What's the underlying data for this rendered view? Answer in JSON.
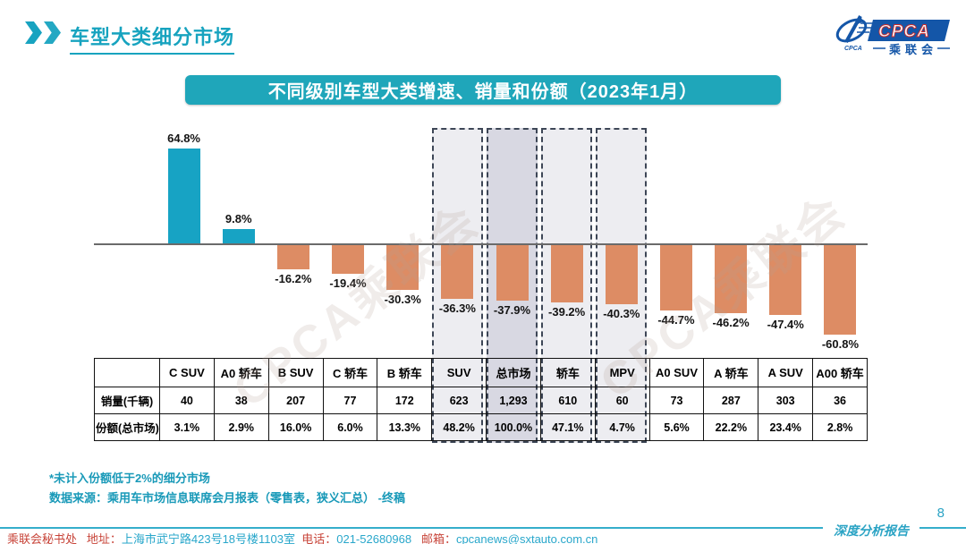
{
  "header": {
    "title": "车型大类细分市场",
    "logo": {
      "cpca": "CPCA",
      "sub": "乘联会",
      "emblem_caption": "CPCA"
    }
  },
  "banner": {
    "title": "不同级别车型大类增速、销量和份额（2023年1月）"
  },
  "chart_data": {
    "type": "bar",
    "title": "不同级别车型大类增速、销量和份额（2023年1月）",
    "categories": [
      "C SUV",
      "A0 轿车",
      "B SUV",
      "C 轿车",
      "B 轿车",
      "SUV",
      "总市场",
      "轿车",
      "MPV",
      "A0 SUV",
      "A 轿车",
      "A SUV",
      "A00 轿车"
    ],
    "series": [
      {
        "name": "增速",
        "unit": "%",
        "values": [
          64.8,
          9.8,
          -16.2,
          -19.4,
          -30.3,
          -36.3,
          -37.9,
          -39.2,
          -40.3,
          -44.7,
          -46.2,
          -47.4,
          -60.8
        ]
      },
      {
        "name": "销量(千辆)",
        "values": [
          40,
          38,
          207,
          77,
          172,
          623,
          1293,
          610,
          60,
          73,
          287,
          303,
          36
        ]
      },
      {
        "name": "份额(总市场)",
        "unit": "%",
        "values": [
          3.1,
          2.9,
          16.0,
          6.0,
          13.3,
          48.2,
          100.0,
          47.1,
          4.7,
          5.6,
          22.2,
          23.4,
          2.8
        ]
      }
    ],
    "growth_display": [
      "64.8%",
      "9.8%",
      "-16.2%",
      "-19.4%",
      "-30.3%",
      "-36.3%",
      "-37.9%",
      "-39.2%",
      "-40.3%",
      "-44.7%",
      "-46.2%",
      "-47.4%",
      "-60.8%"
    ],
    "highlighted_categories": [
      "SUV",
      "总市场",
      "轿车",
      "MPV"
    ],
    "ylim": [
      -70,
      75
    ],
    "grid": false,
    "legend": "none"
  },
  "table": {
    "row_labels": [
      "销量(千辆)",
      "份额(总市场)"
    ],
    "sales_display": [
      "40",
      "38",
      "207",
      "77",
      "172",
      "623",
      "1,293",
      "610",
      "60",
      "73",
      "287",
      "303",
      "36"
    ],
    "share_display": [
      "3.1%",
      "2.9%",
      "16.0%",
      "6.0%",
      "13.3%",
      "48.2%",
      "100.0%",
      "47.1%",
      "4.7%",
      "5.6%",
      "22.2%",
      "23.4%",
      "2.8%"
    ]
  },
  "notes": {
    "note1": "*未计入份额低于2%的细分市场",
    "note2": "数据来源：乘用车市场信息联席会月报表（零售表，狭义汇总） -终稿"
  },
  "footer": {
    "org": "乘联会秘书处",
    "address_label": "地址：",
    "address": "上海市武宁路423号18号楼1103室",
    "phone_label": "电话：",
    "phone": "021-52680968",
    "email_label": "邮箱：",
    "email": "cpcanews@sxtauto.com.cn",
    "report_label": "深度分析报告",
    "page_number": "8"
  },
  "watermark": {
    "text": "CPCA乘联会"
  },
  "colors": {
    "accent_teal": "#1FA6BA",
    "bar_positive": "#17A3C4",
    "bar_negative": "#DD8C64",
    "highlight_fill": "#EDEDF1",
    "highlight_fill_total": "#D8D8E2",
    "highlight_border": "#3D4656",
    "footer_red": "#C8453A",
    "footer_teal": "#29A7CB"
  }
}
